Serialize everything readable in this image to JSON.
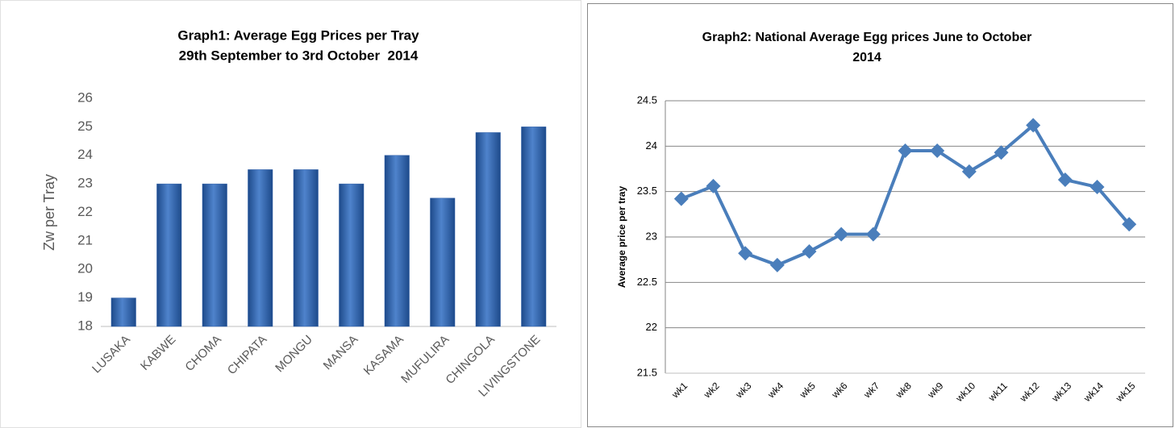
{
  "chart_data": [
    {
      "type": "bar",
      "title": [
        "Graph1: Average Egg Prices per Tray",
        "29th September to 3rd October  2014"
      ],
      "y_label": "Zw per Tray",
      "categories": [
        "LUSAKA",
        "KABWE",
        "CHOMA",
        "CHIPATA",
        "MONGU",
        "MANSA",
        "KASAMA",
        "MUFULIRA",
        "CHINGOLA",
        "LIVINGSTONE"
      ],
      "values": [
        19,
        23,
        23,
        23.5,
        23.5,
        23,
        24,
        22.5,
        24.8,
        25
      ],
      "color": "#2f5fa8",
      "ylim": [
        18,
        26
      ],
      "yticks": [
        18,
        19,
        20,
        21,
        22,
        23,
        24,
        25,
        26
      ],
      "grid": false
    },
    {
      "type": "line",
      "title": [
        "Graph2: National Average Egg prices June to October",
        "2014"
      ],
      "y_label": "Average price per tray",
      "categories": [
        "wk1",
        "wk2",
        "wk3",
        "wk4",
        "wk5",
        "wk6",
        "wk7",
        "wk8",
        "wk9",
        "wk10",
        "wk11",
        "wk12",
        "wk13",
        "wk14",
        "wk15"
      ],
      "values": [
        23.42,
        23.56,
        22.82,
        22.69,
        22.84,
        23.03,
        23.03,
        23.95,
        23.95,
        23.72,
        23.93,
        24.23,
        23.63,
        23.55,
        23.14
      ],
      "color": "#4a7ebb",
      "ylim": [
        21.5,
        24.5
      ],
      "yticks": [
        21.5,
        22,
        22.5,
        23,
        23.5,
        24,
        24.5
      ],
      "grid": true
    }
  ]
}
